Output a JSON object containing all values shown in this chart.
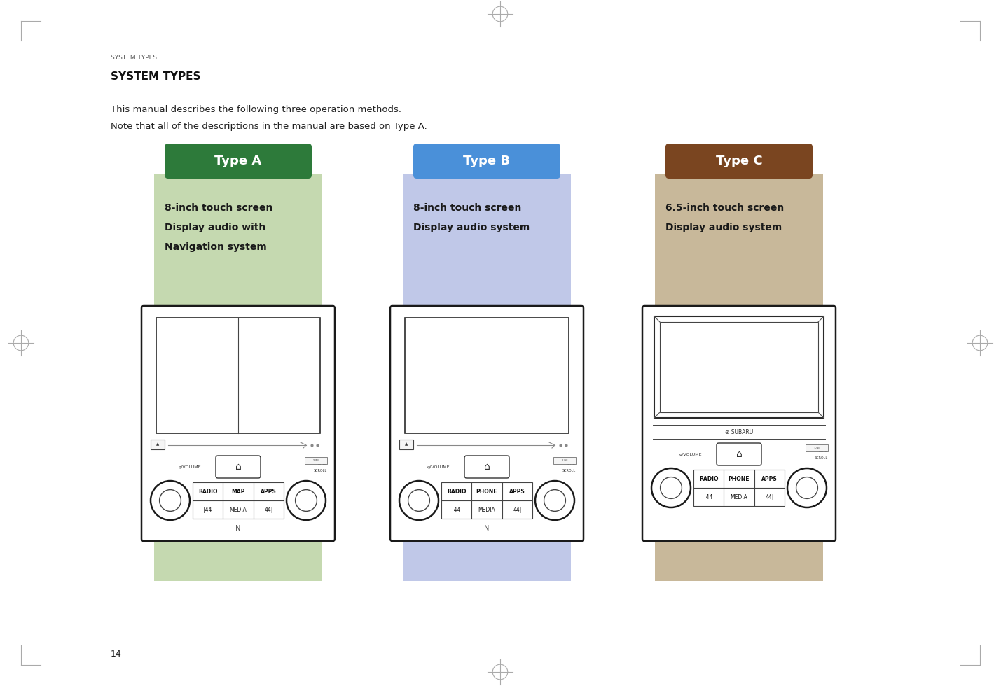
{
  "bg_color": "#ffffff",
  "header_text": "SYSTEM TYPES",
  "header_font_size": 6.5,
  "title_text": "SYSTEM TYPES",
  "title_font_size": 11,
  "body_text_line1": "This manual describes the following three operation methods.",
  "body_text_line2": "Note that all of the descriptions in the manual are based on Type A.",
  "body_font_size": 9.5,
  "page_number": "14",
  "types": [
    {
      "label": "Type A",
      "label_bg": "#2d7a3a",
      "desc_bg": "#c5d9b0",
      "desc_lines": [
        "8-inch touch screen",
        "Display audio with",
        "Navigation system"
      ],
      "buttons_row1": [
        "RADIO",
        "MAP",
        "APPS"
      ],
      "buttons_row2": [
        "|44",
        "MEDIA",
        "44|"
      ],
      "has_cd": true,
      "screen_split": true,
      "nfc": true
    },
    {
      "label": "Type B",
      "label_bg": "#4a90d9",
      "desc_bg": "#c0c8e8",
      "desc_lines": [
        "8-inch touch screen",
        "Display audio system"
      ],
      "buttons_row1": [
        "RADIO",
        "PHONE",
        "APPS"
      ],
      "buttons_row2": [
        "|44",
        "MEDIA",
        "44|"
      ],
      "has_cd": true,
      "screen_split": false,
      "nfc": true
    },
    {
      "label": "Type C",
      "label_bg": "#7a4520",
      "desc_bg": "#c8b89a",
      "desc_lines": [
        "6.5-inch touch screen",
        "Display audio system"
      ],
      "buttons_row1": [
        "RADIO",
        "PHONE",
        "APPS"
      ],
      "buttons_row2": [
        "|44",
        "MEDIA",
        "44|"
      ],
      "has_cd": false,
      "screen_split": false,
      "nfc": false
    }
  ]
}
